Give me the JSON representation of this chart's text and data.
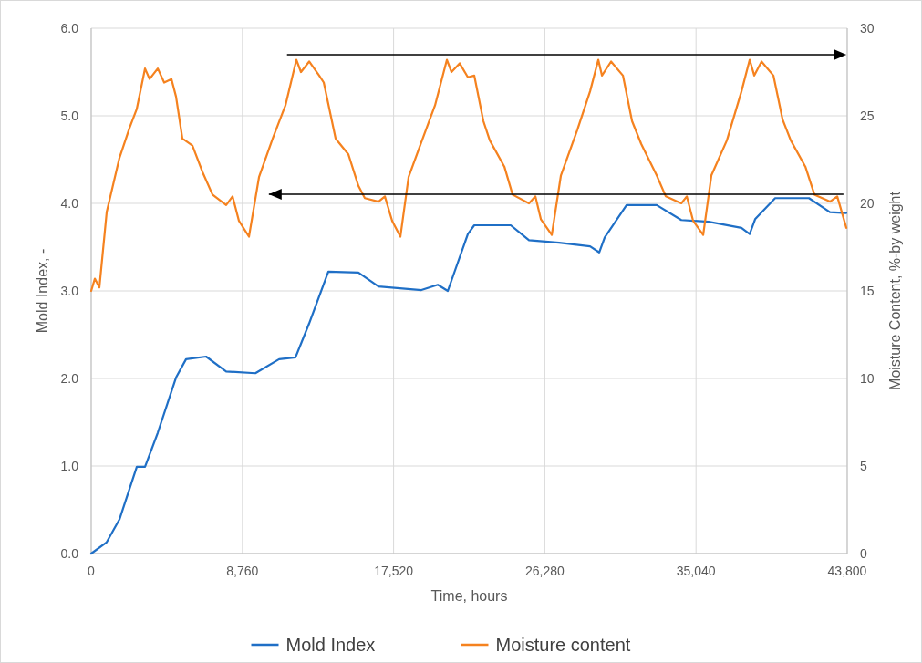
{
  "chart_data": {
    "type": "line",
    "xlabel": "Time, hours",
    "ylabel": "Mold Index, -",
    "y2label": "Moisture Content, %-by weight",
    "xlim": [
      0,
      43800
    ],
    "xticks": [
      0,
      {
        "value": 8760,
        "label": "8,760"
      },
      {
        "value": 17520,
        "label": "17,520"
      },
      {
        "value": 26280,
        "label": "26,280"
      },
      {
        "value": 35040,
        "label": "35,040"
      },
      {
        "value": 43800,
        "label": "43,800"
      }
    ],
    "ylim": [
      0,
      6
    ],
    "yticks": [
      {
        "value": 0,
        "label": "0.0"
      },
      {
        "value": 1,
        "label": "1.0"
      },
      {
        "value": 2,
        "label": "2.0"
      },
      {
        "value": 3,
        "label": "3.0"
      },
      {
        "value": 4,
        "label": "4.0"
      },
      {
        "value": 5,
        "label": "5.0"
      },
      {
        "value": 6,
        "label": "6.0"
      }
    ],
    "y2lim": [
      0,
      30
    ],
    "y2ticks": [
      0,
      5,
      10,
      15,
      20,
      25,
      30
    ],
    "grid": true,
    "legend": "bottom",
    "marker": "none",
    "line_style": "solid",
    "series": [
      {
        "name": "Mold Index",
        "color": "#1f6fc6",
        "x": [
          0,
          898,
          1638,
          2642,
          3118,
          3857,
          4914,
          5495,
          6658,
          7820,
          9511,
          10885,
          11836,
          12629,
          13738,
          15482,
          16645,
          19128,
          20080,
          20660,
          21823,
          22193,
          24306,
          25363,
          27107,
          28903,
          29432,
          29749,
          31017,
          32761,
          34188,
          35770,
          37672,
          38148,
          38465,
          39627,
          41582,
          42798,
          43747
        ],
        "values": [
          0,
          0.13,
          0.39,
          0.99,
          0.99,
          1.38,
          2.01,
          2.22,
          2.25,
          2.08,
          2.06,
          2.22,
          2.24,
          2.63,
          3.22,
          3.21,
          3.05,
          3.01,
          3.07,
          3.0,
          3.65,
          3.75,
          3.75,
          3.58,
          3.55,
          3.51,
          3.44,
          3.61,
          3.98,
          3.98,
          3.81,
          3.79,
          3.72,
          3.65,
          3.82,
          4.06,
          4.06,
          3.9,
          3.89
        ]
      },
      {
        "name": "Moisture content",
        "color": "#f5821f",
        "axis": "y2",
        "x": [
          0,
          211,
          476,
          898,
          1638,
          2219,
          2642,
          3118,
          3382,
          3857,
          4227,
          4650,
          4914,
          5284,
          5865,
          6446,
          7028,
          7820,
          8190,
          8560,
          9141,
          9722,
          10515,
          11255,
          11889,
          12153,
          12629,
          13210,
          13474,
          14161,
          14901,
          15482,
          15852,
          16645,
          17014,
          17437,
          17913,
          18388,
          19128,
          19921,
          20608,
          20872,
          21347,
          21823,
          22193,
          22721,
          23091,
          23937,
          24412,
          25363,
          25733,
          26050,
          26684,
          27213,
          28164,
          28903,
          29379,
          29590,
          30119,
          30806,
          31334,
          31863,
          32761,
          33289,
          34188,
          34505,
          34874,
          35456,
          35931,
          36829,
          37675,
          38150,
          38415,
          38837,
          39524,
          40053,
          40528,
          41374,
          41902,
          42800,
          43223,
          43750
        ],
        "values": [
          15.0,
          15.7,
          15.2,
          19.5,
          22.6,
          24.3,
          25.4,
          27.7,
          27.1,
          27.7,
          26.9,
          27.1,
          26.1,
          23.7,
          23.3,
          21.8,
          20.5,
          19.9,
          20.4,
          19.0,
          18.1,
          21.5,
          23.7,
          25.6,
          28.2,
          27.5,
          28.1,
          27.3,
          26.9,
          23.7,
          22.8,
          21.0,
          20.3,
          20.1,
          20.4,
          19.0,
          18.1,
          21.5,
          23.5,
          25.6,
          28.2,
          27.5,
          28.0,
          27.2,
          27.3,
          24.7,
          23.6,
          22.1,
          20.5,
          20.0,
          20.4,
          19.1,
          18.2,
          21.6,
          24.2,
          26.4,
          28.2,
          27.3,
          28.1,
          27.3,
          24.7,
          23.4,
          21.6,
          20.4,
          20.0,
          20.4,
          19.0,
          18.2,
          21.6,
          23.6,
          26.4,
          28.2,
          27.3,
          28.1,
          27.3,
          24.8,
          23.6,
          22.1,
          20.5,
          20.1,
          20.4,
          18.6
        ]
      }
    ]
  }
}
